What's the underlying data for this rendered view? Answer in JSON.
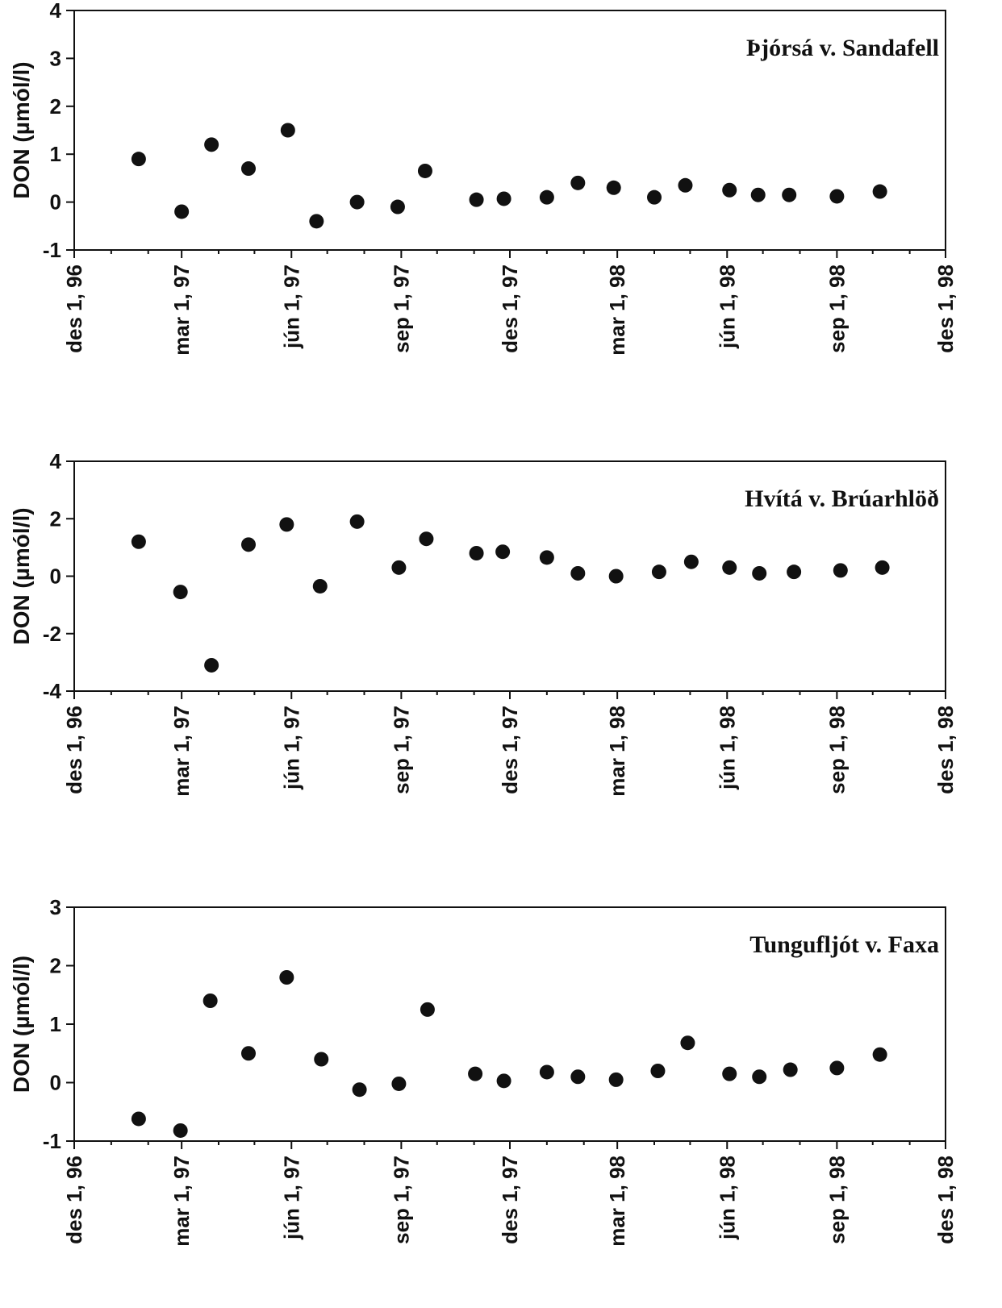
{
  "chart_data": [
    {
      "type": "scatter",
      "title": "Þjórsá v. Sandafell",
      "ylabel": "DON (µmól/l)",
      "xlabel": "",
      "ylim": [
        -1,
        4
      ],
      "yticks": [
        -1,
        0,
        1,
        2,
        3,
        4
      ],
      "xlim": [
        "1996-12-01",
        "1998-12-01"
      ],
      "xtick_labels": [
        "des 1, 96",
        "mar 1, 97",
        "jún 1, 97",
        "sep 1, 97",
        "des 1, 97",
        "mar 1, 98",
        "jún 1, 98",
        "sep 1, 98",
        "des 1, 98"
      ],
      "grid": false,
      "legend": "none",
      "marker_color": "#111111",
      "series": [
        {
          "x": [
            "1997-01-24",
            "1997-03-01",
            "1997-03-26",
            "1997-04-26",
            "1997-05-29",
            "1997-06-22",
            "1997-07-26",
            "1997-08-29",
            "1997-09-21",
            "1997-11-03",
            "1997-11-26",
            "1998-01-01",
            "1998-01-27",
            "1998-02-26",
            "1998-04-01",
            "1998-04-27",
            "1998-06-03",
            "1998-06-27",
            "1998-07-23",
            "1998-09-01",
            "1998-10-07"
          ],
          "y": [
            0.9,
            -0.2,
            1.2,
            0.7,
            1.5,
            -0.4,
            0.0,
            -0.1,
            0.65,
            0.05,
            0.07,
            0.1,
            0.4,
            0.3,
            0.1,
            0.35,
            0.25,
            0.15,
            0.15,
            0.12,
            0.22
          ]
        }
      ]
    },
    {
      "type": "scatter",
      "title": "Hvítá v. Brúarhlöð",
      "ylabel": "DON (µmól/l)",
      "xlabel": "",
      "ylim": [
        -4,
        4
      ],
      "yticks": [
        -4,
        -2,
        0,
        2,
        4
      ],
      "xlim": [
        "1996-12-01",
        "1998-12-01"
      ],
      "xtick_labels": [
        "des 1, 96",
        "mar 1, 97",
        "jún 1, 97",
        "sep 1, 97",
        "des 1, 97",
        "mar 1, 98",
        "jún 1, 98",
        "sep 1, 98",
        "des 1, 98"
      ],
      "grid": false,
      "legend": "none",
      "marker_color": "#111111",
      "series": [
        {
          "x": [
            "1997-01-24",
            "1997-02-28",
            "1997-03-26",
            "1997-04-26",
            "1997-05-28",
            "1997-06-25",
            "1997-07-26",
            "1997-08-30",
            "1997-09-22",
            "1997-11-03",
            "1997-11-25",
            "1998-01-01",
            "1998-01-27",
            "1998-02-28",
            "1998-04-05",
            "1998-05-02",
            "1998-06-03",
            "1998-06-28",
            "1998-07-27",
            "1998-09-04",
            "1998-10-09"
          ],
          "y": [
            1.2,
            -0.55,
            -3.1,
            1.1,
            1.8,
            -0.35,
            1.9,
            0.3,
            1.3,
            0.8,
            0.85,
            0.65,
            0.1,
            0.0,
            0.15,
            0.5,
            0.3,
            0.1,
            0.15,
            0.2,
            0.3
          ]
        }
      ]
    },
    {
      "type": "scatter",
      "title": "Tungufljót v. Faxa",
      "ylabel": "DON (µmól/l)",
      "xlabel": "",
      "ylim": [
        -1,
        3
      ],
      "yticks": [
        -1,
        0,
        1,
        2,
        3
      ],
      "xlim": [
        "1996-12-01",
        "1998-12-01"
      ],
      "xtick_labels": [
        "des 1, 96",
        "mar 1, 97",
        "jún 1, 97",
        "sep 1, 97",
        "des 1, 97",
        "mar 1, 98",
        "jún 1, 98",
        "sep 1, 98",
        "des 1, 98"
      ],
      "grid": false,
      "legend": "none",
      "marker_color": "#111111",
      "series": [
        {
          "x": [
            "1997-01-24",
            "1997-02-28",
            "1997-03-25",
            "1997-04-26",
            "1997-05-28",
            "1997-06-26",
            "1997-07-28",
            "1997-08-30",
            "1997-09-23",
            "1997-11-02",
            "1997-11-26",
            "1998-01-01",
            "1998-01-27",
            "1998-02-28",
            "1998-04-04",
            "1998-04-29",
            "1998-06-03",
            "1998-06-28",
            "1998-07-24",
            "1998-09-01",
            "1998-10-07"
          ],
          "y": [
            -0.62,
            -0.82,
            1.4,
            0.5,
            1.8,
            0.4,
            -0.12,
            -0.02,
            1.25,
            0.15,
            0.03,
            0.18,
            0.1,
            0.05,
            0.2,
            0.68,
            0.15,
            0.1,
            0.22,
            0.25,
            0.48
          ]
        }
      ]
    }
  ]
}
